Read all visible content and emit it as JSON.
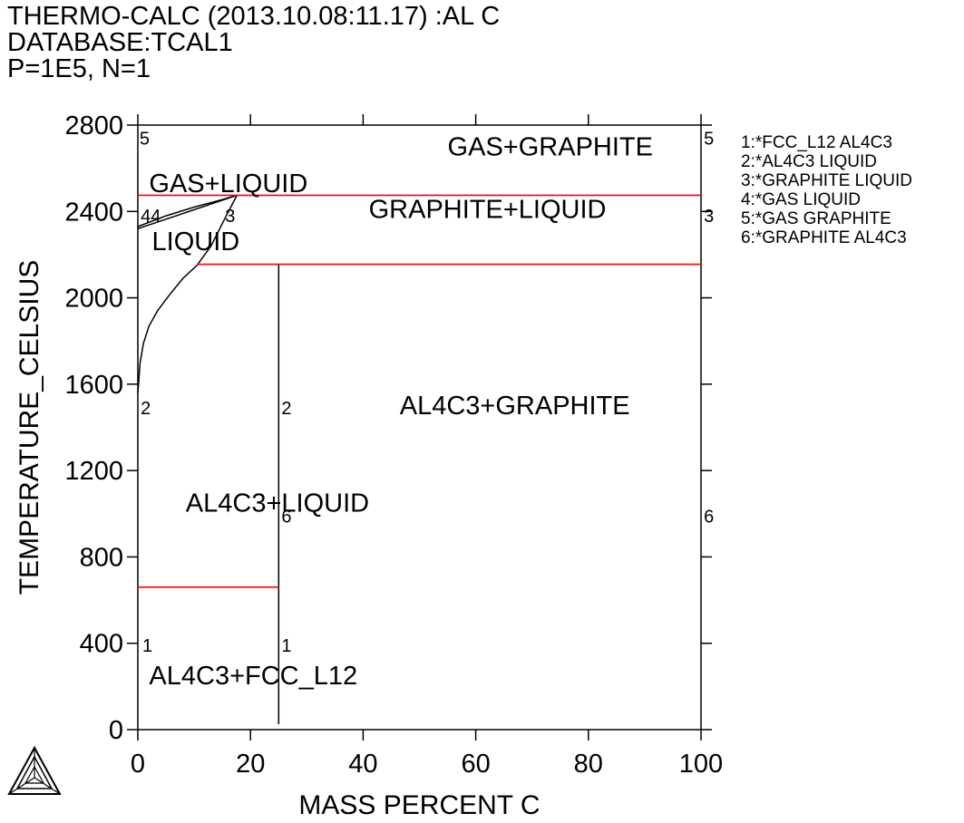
{
  "header": {
    "line1": "THERMO-CALC (2013.10.08:11.17) :AL C",
    "line2": "DATABASE:TCAL1",
    "line3": "P=1E5, N=1"
  },
  "logo": {
    "icon": "thermo-calc-triangle-logo"
  },
  "chart_data": {
    "type": "line",
    "title": "",
    "xlabel": "MASS  PERCENT C",
    "ylabel": "TEMPERATURE_CELSIUS",
    "xlim": [
      0,
      100
    ],
    "ylim": [
      0,
      2800
    ],
    "xticks": [
      0,
      20,
      40,
      60,
      80,
      100
    ],
    "yticks": [
      0,
      400,
      800,
      1200,
      1600,
      2000,
      2400,
      2800
    ],
    "x_tick_labels": [
      "0",
      "20",
      "40",
      "60",
      "80",
      "100"
    ],
    "y_tick_labels": [
      "0",
      "400",
      "800",
      "1200",
      "1600",
      "2000",
      "2400",
      "2800"
    ],
    "grid": false,
    "legend_position": "right",
    "colors": {
      "boundary": "#000000",
      "invariant": "#ff0000"
    },
    "legend": [
      "1:*FCC_L12 AL4C3",
      "2:*AL4C3 LIQUID",
      "3:*GRAPHITE LIQUID",
      "4:*GAS LIQUID",
      "5:*GAS GRAPHITE",
      "6:*GRAPHITE AL4C3"
    ],
    "series": [
      {
        "id": "al4c3-composition",
        "color": "#000000",
        "points": [
          [
            25,
            25
          ],
          [
            25,
            2155
          ]
        ]
      },
      {
        "id": "liquidus-graphite-al4c3",
        "color": "#000000",
        "points": [
          [
            0,
            1560
          ],
          [
            0.4,
            1700
          ],
          [
            1.0,
            1790
          ],
          [
            2.0,
            1870
          ],
          [
            3.5,
            1940
          ],
          [
            5.5,
            2010
          ],
          [
            8.0,
            2090
          ],
          [
            10.5,
            2150
          ],
          [
            13,
            2240
          ],
          [
            15.5,
            2370
          ],
          [
            17.6,
            2475
          ]
        ]
      },
      {
        "id": "gas-liquid-upper",
        "color": "#000000",
        "points": [
          [
            0,
            2330
          ],
          [
            5,
            2380
          ],
          [
            10,
            2420
          ],
          [
            15,
            2455
          ],
          [
            17.6,
            2475
          ]
        ]
      },
      {
        "id": "gas-liquid-lower",
        "color": "#000000",
        "points": [
          [
            0,
            2320
          ],
          [
            17.6,
            2475
          ]
        ]
      },
      {
        "id": "invariant-gas-liquid-graphite",
        "color": "#ff0000",
        "points": [
          [
            0,
            2475
          ],
          [
            100,
            2475
          ]
        ]
      },
      {
        "id": "invariant-liquid-al4c3-graphite",
        "color": "#ff0000",
        "points": [
          [
            10.5,
            2155
          ],
          [
            100,
            2155
          ]
        ]
      },
      {
        "id": "invariant-fcc-al4c3-liquid",
        "color": "#ff0000",
        "points": [
          [
            0,
            660
          ],
          [
            25,
            660
          ]
        ]
      }
    ],
    "region_labels": [
      {
        "text": "GAS+GRAPHITE",
        "x": 55,
        "y": 2660
      },
      {
        "text": "GAS+LIQUID",
        "x": 2,
        "y": 2490
      },
      {
        "text": "GRAPHITE+LIQUID",
        "x": 41,
        "y": 2370
      },
      {
        "text": "LIQUID",
        "x": 2.5,
        "y": 2220
      },
      {
        "text": "AL4C3+GRAPHITE",
        "x": 46.5,
        "y": 1460
      },
      {
        "text": "AL4C3+LIQUID",
        "x": 8.5,
        "y": 1010
      },
      {
        "text": "AL4C3+FCC_L12",
        "x": 2,
        "y": 210
      }
    ],
    "number_labels": [
      {
        "text": "5",
        "x": 0.3,
        "y": 2710
      },
      {
        "text": "5",
        "x": 100.5,
        "y": 2710
      },
      {
        "text": "44",
        "x": 0.5,
        "y": 2350
      },
      {
        "text": "3",
        "x": 15.5,
        "y": 2350
      },
      {
        "text": "3",
        "x": 100.5,
        "y": 2350
      },
      {
        "text": "2",
        "x": 0.5,
        "y": 1460
      },
      {
        "text": "2",
        "x": 25.5,
        "y": 1460
      },
      {
        "text": "6",
        "x": 25.5,
        "y": 960
      },
      {
        "text": "6",
        "x": 100.5,
        "y": 960
      },
      {
        "text": "1",
        "x": 0.8,
        "y": 360
      },
      {
        "text": "1",
        "x": 25.5,
        "y": 360
      }
    ]
  }
}
